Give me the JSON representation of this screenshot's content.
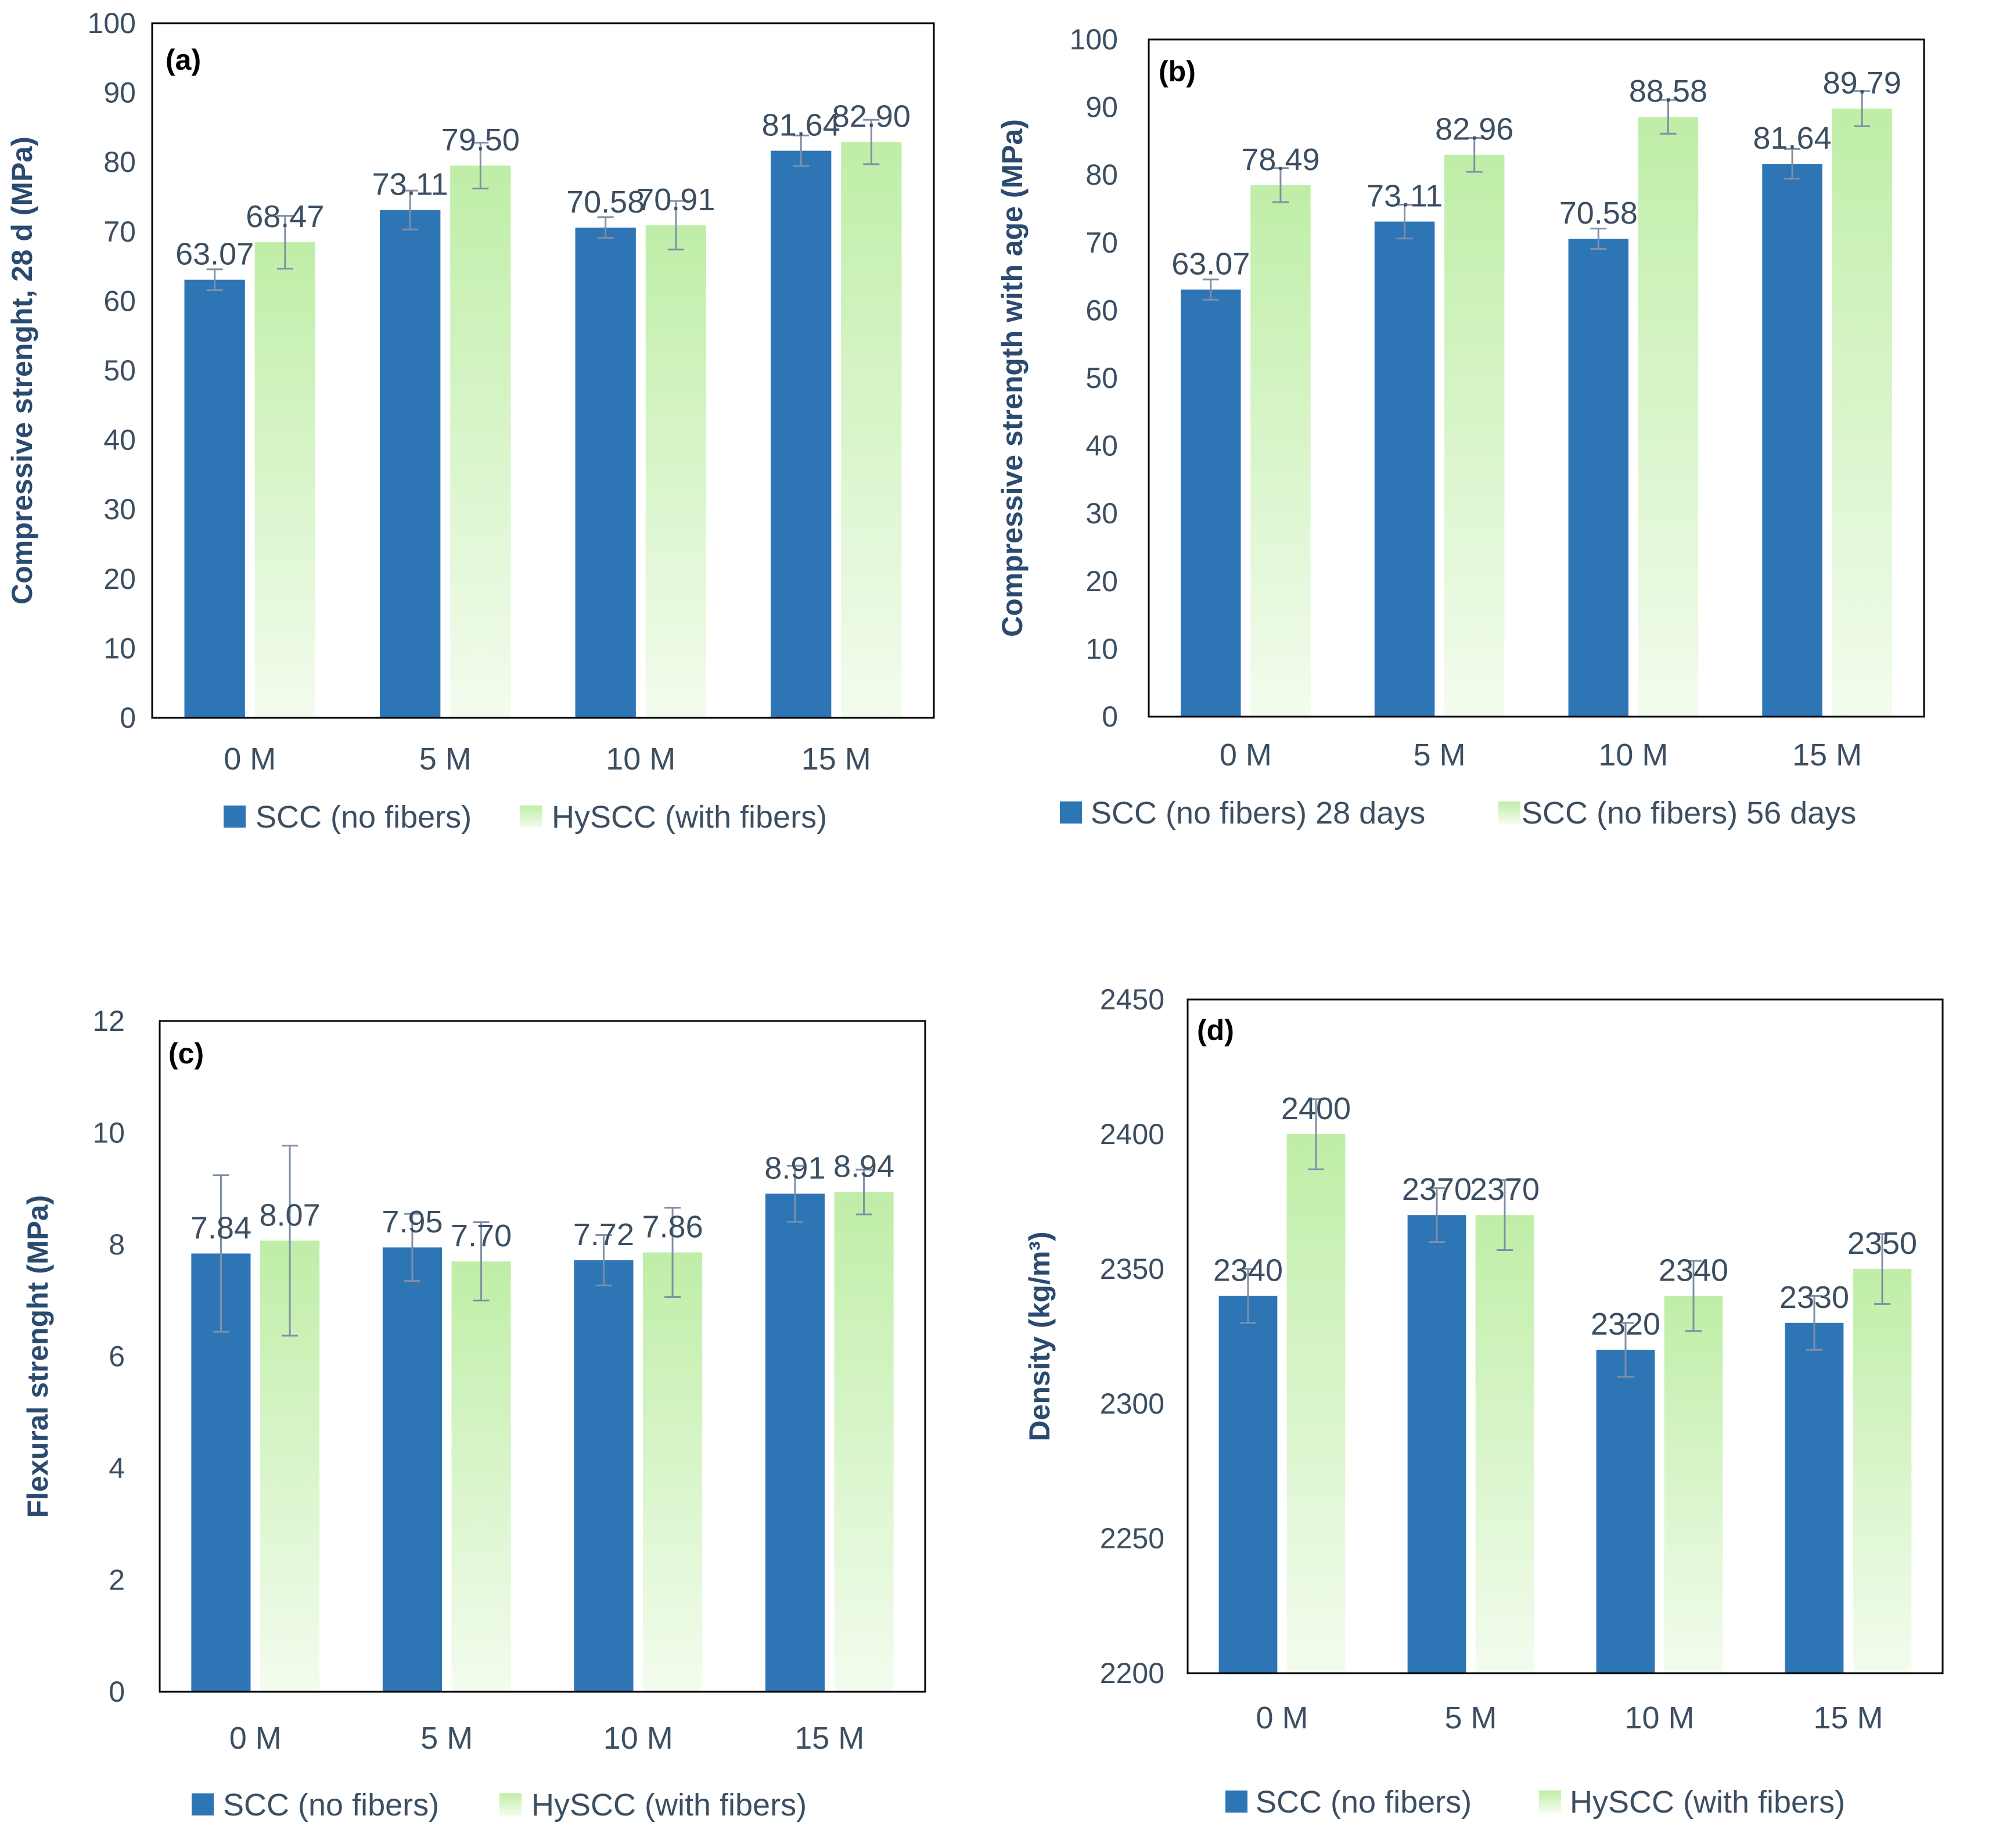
{
  "colors": {
    "scc": "#2e75b6",
    "green_top": "#bfeea7",
    "green_bottom": "#f3fcee",
    "text": "#3b4e62",
    "label": "#2b4a6f",
    "axis": "#7f7f7f",
    "frame": "#000000",
    "error": "#7f8fa6"
  },
  "chart_data": [
    {
      "id": "a",
      "type": "bar",
      "panel_label": "(a)",
      "title": "",
      "xlabel": "",
      "ylabel": "Compressive strenght, 28 d  (MPa)",
      "categories": [
        "0 M",
        "5 M",
        "10 M",
        "15 M"
      ],
      "ylim": [
        0,
        100
      ],
      "yticks": [
        0,
        10,
        20,
        30,
        40,
        50,
        60,
        70,
        80,
        90,
        100
      ],
      "grid": false,
      "legend_position": "bottom",
      "series": [
        {
          "name": "SCC (no fibers)",
          "style": "solid",
          "values": [
            63.07,
            73.11,
            70.58,
            81.64
          ],
          "labels": [
            "63.07",
            "73.11",
            "70.58",
            "81.64"
          ],
          "errors": [
            1.5,
            2.8,
            1.5,
            2.2
          ]
        },
        {
          "name": "HySCC (with fibers)",
          "style": "gradient",
          "values": [
            68.47,
            79.5,
            70.91,
            82.9
          ],
          "labels": [
            "68.47",
            "79.50",
            "70.91",
            "82.90"
          ],
          "errors": [
            3.8,
            3.3,
            3.5,
            3.2
          ]
        }
      ]
    },
    {
      "id": "b",
      "type": "bar",
      "panel_label": "(b)",
      "title": "",
      "xlabel": "",
      "ylabel": "Compressive strength with age  (MPa)",
      "categories": [
        "0 M",
        "5 M",
        "10 M",
        "15 M"
      ],
      "ylim": [
        0,
        100
      ],
      "yticks": [
        0,
        10,
        20,
        30,
        40,
        50,
        60,
        70,
        80,
        90,
        100
      ],
      "grid": false,
      "legend_position": "bottom",
      "series": [
        {
          "name": "SCC (no fibers) 28 days",
          "style": "solid",
          "values": [
            63.07,
            73.11,
            70.58,
            81.64
          ],
          "labels": [
            "63.07",
            "73.11",
            "70.58",
            "81.64"
          ],
          "errors": [
            1.5,
            2.5,
            1.5,
            2.2
          ]
        },
        {
          "name": "SCC (no fibers) 56 days",
          "style": "gradient",
          "values": [
            78.49,
            82.96,
            88.58,
            89.79
          ],
          "labels": [
            "78.49",
            "82.96",
            "88.58",
            "89.79"
          ],
          "errors": [
            2.5,
            2.5,
            2.5,
            2.6
          ]
        }
      ]
    },
    {
      "id": "c",
      "type": "bar",
      "panel_label": "(c)",
      "title": "",
      "xlabel": "",
      "ylabel": "Flexural strenght (MPa)",
      "categories": [
        "0 M",
        "5 M",
        "10 M",
        "15 M"
      ],
      "ylim": [
        0,
        12
      ],
      "yticks": [
        0,
        2,
        4,
        6,
        8,
        10,
        12
      ],
      "grid": false,
      "legend_position": "bottom",
      "series": [
        {
          "name": "SCC (no fibers)",
          "style": "solid",
          "values": [
            7.84,
            7.95,
            7.72,
            8.91
          ],
          "labels": [
            "7.84",
            "7.95",
            "7.72",
            "8.91"
          ],
          "errors": [
            1.4,
            0.6,
            0.45,
            0.5
          ]
        },
        {
          "name": "HySCC (with fibers)",
          "style": "gradient",
          "values": [
            8.07,
            7.7,
            7.86,
            8.94
          ],
          "labels": [
            "8.07",
            "7.70",
            "7.86",
            "8.94"
          ],
          "errors": [
            1.7,
            0.7,
            0.8,
            0.4
          ]
        }
      ]
    },
    {
      "id": "d",
      "type": "bar",
      "panel_label": "(d)",
      "title": "",
      "xlabel": "",
      "ylabel": "Density (kg/m³)",
      "categories": [
        "0 M",
        "5 M",
        "10 M",
        "15 M"
      ],
      "ylim": [
        2200,
        2450
      ],
      "yticks": [
        2200,
        2250,
        2300,
        2350,
        2400,
        2450
      ],
      "grid": false,
      "legend_position": "bottom",
      "series": [
        {
          "name": "SCC (no fibers)",
          "style": "solid",
          "values": [
            2340,
            2370,
            2320,
            2330
          ],
          "labels": [
            "2340",
            "2370",
            "2320",
            "2330"
          ],
          "errors": [
            10,
            10,
            10,
            10
          ]
        },
        {
          "name": "HySCC (with fibers)",
          "style": "gradient",
          "values": [
            2400,
            2370,
            2340,
            2350
          ],
          "labels": [
            "2400",
            "2370",
            "2340",
            "2350"
          ],
          "errors": [
            13,
            13,
            13,
            13
          ]
        }
      ]
    }
  ]
}
